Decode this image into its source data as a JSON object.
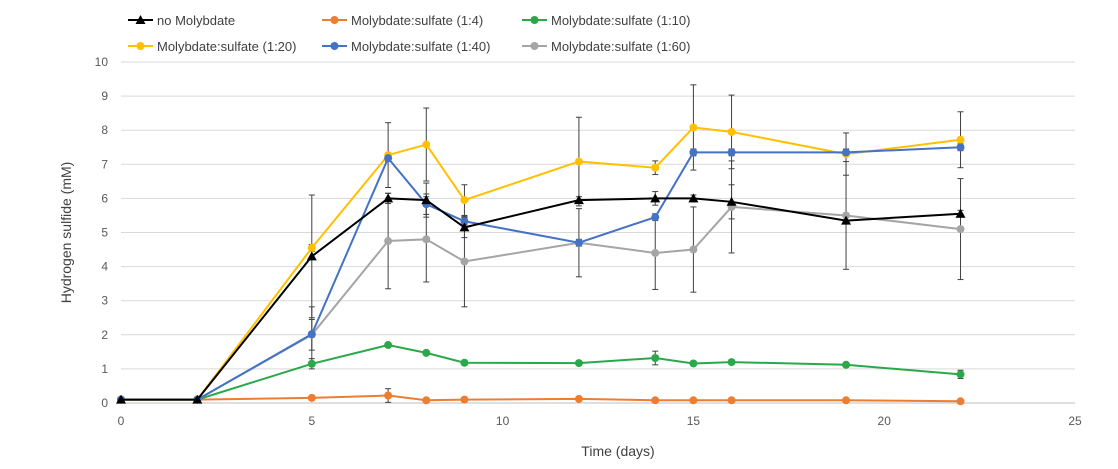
{
  "chart_data": {
    "type": "line",
    "xlabel": "Time (days)",
    "ylabel": "Hydrogen sulfide (mM)",
    "xlim": [
      0,
      25
    ],
    "ylim": [
      0,
      10
    ],
    "xticks": [
      0,
      5,
      10,
      15,
      20,
      25
    ],
    "yticks": [
      0,
      1,
      2,
      3,
      4,
      5,
      6,
      7,
      8,
      9,
      10
    ],
    "grid": true,
    "legend_position": "top",
    "series": [
      {
        "name": "no Molybdate",
        "color": "#000000",
        "marker": "triangle",
        "x": [
          0,
          2,
          5,
          7,
          8,
          9,
          12,
          14,
          15,
          16,
          19,
          22
        ],
        "y": [
          0.1,
          0.1,
          4.3,
          6.0,
          5.95,
          5.15,
          5.95,
          6.0,
          6.0,
          5.9,
          5.35,
          5.55
        ],
        "err": [
          0.02,
          0.02,
          1.8,
          0.15,
          0.5,
          0.3,
          0.1,
          0.2,
          0.1,
          0.5,
          0.1,
          0.1
        ]
      },
      {
        "name": "Molybdate:sulfate (1:4)",
        "color": "#ed7d31",
        "marker": "circle",
        "x": [
          0,
          2,
          5,
          7,
          8,
          9,
          12,
          14,
          15,
          16,
          19,
          22
        ],
        "y": [
          0.1,
          0.1,
          0.15,
          0.22,
          0.08,
          0.1,
          0.12,
          0.08,
          0.08,
          0.08,
          0.08,
          0.05
        ],
        "err": [
          0.02,
          0.02,
          0.03,
          0.2,
          0.02,
          0.02,
          0.03,
          0.02,
          0.02,
          0.02,
          0.02,
          0.02
        ]
      },
      {
        "name": "Molybdate:sulfate (1:10)",
        "color": "#2ba84a",
        "marker": "circle",
        "x": [
          0,
          2,
          5,
          7,
          8,
          9,
          12,
          14,
          15,
          16,
          19,
          22
        ],
        "y": [
          0.1,
          0.1,
          1.15,
          1.7,
          1.47,
          1.18,
          1.17,
          1.32,
          1.16,
          1.2,
          1.12,
          0.84
        ],
        "err": [
          0.02,
          0.02,
          0.15,
          0.05,
          0.05,
          0.05,
          0.05,
          0.2,
          0.05,
          0.05,
          0.05,
          0.12
        ]
      },
      {
        "name": "Molybdate:sulfate (1:20)",
        "color": "#ffc000",
        "marker": "circle",
        "x": [
          0,
          2,
          5,
          7,
          8,
          9,
          12,
          14,
          15,
          16,
          19,
          22
        ],
        "y": [
          0.1,
          0.1,
          4.55,
          7.27,
          7.58,
          5.95,
          7.08,
          6.9,
          8.08,
          7.95,
          7.3,
          7.72
        ],
        "err": [
          0.02,
          0.02,
          0.1,
          0.95,
          1.07,
          0.45,
          1.3,
          0.2,
          1.25,
          1.08,
          0.62,
          0.82
        ]
      },
      {
        "name": "Molybdate:sulfate (1:40)",
        "color": "#4472c4",
        "marker": "circle",
        "x": [
          0,
          2,
          5,
          7,
          8,
          9,
          12,
          14,
          15,
          16,
          19,
          22
        ],
        "y": [
          0.1,
          0.1,
          2.02,
          7.18,
          5.83,
          5.33,
          4.7,
          5.45,
          7.35,
          7.35,
          7.35,
          7.5
        ],
        "err": [
          0.02,
          0.02,
          0.8,
          0.1,
          0.3,
          0.1,
          0.1,
          0.1,
          0.1,
          0.1,
          0.1,
          0.1
        ]
      },
      {
        "name": "Molybdate:sulfate (1:60)",
        "color": "#a5a5a5",
        "marker": "circle",
        "x": [
          0,
          2,
          5,
          7,
          8,
          9,
          12,
          14,
          15,
          16,
          19,
          22
        ],
        "y": [
          0.1,
          0.1,
          2.0,
          4.75,
          4.8,
          4.15,
          4.7,
          4.4,
          4.5,
          5.75,
          5.5,
          5.1
        ],
        "err": [
          0.02,
          0.02,
          0.45,
          1.4,
          1.25,
          1.33,
          1.0,
          1.07,
          1.25,
          1.35,
          1.58,
          1.48
        ]
      }
    ]
  }
}
